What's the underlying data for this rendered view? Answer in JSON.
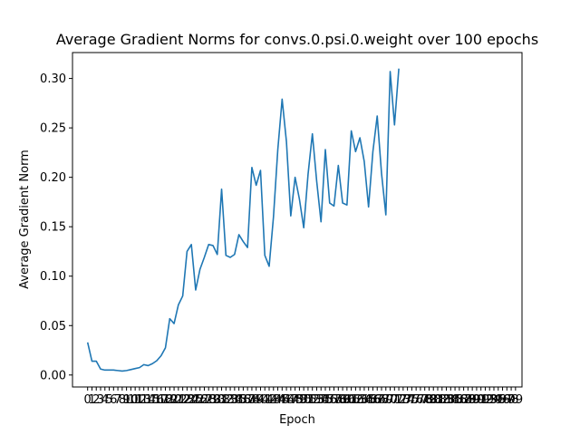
{
  "chart_data": {
    "type": "line",
    "title": "Average Gradient Norms for convs.0.psi.0.weight over 100 epochs",
    "xlabel": "Epoch",
    "ylabel": "Average Gradient Norm",
    "xlim": [
      -3.5,
      100.5
    ],
    "ylim": [
      -0.0121,
      0.3262
    ],
    "x_ticks": [
      0,
      1,
      2,
      3,
      4,
      5,
      6,
      7,
      8,
      9,
      10,
      11,
      12,
      13,
      14,
      15,
      16,
      17,
      18,
      19,
      20,
      21,
      22,
      23,
      24,
      25,
      26,
      27,
      28,
      29,
      30,
      31,
      32,
      33,
      34,
      35,
      36,
      37,
      38,
      39,
      40,
      41,
      42,
      43,
      44,
      45,
      46,
      47,
      48,
      49,
      50,
      51,
      52,
      53,
      54,
      55,
      56,
      57,
      58,
      59,
      60,
      61,
      62,
      63,
      64,
      65,
      66,
      67,
      68,
      69,
      70,
      71,
      72,
      73,
      74,
      75,
      76,
      77,
      78,
      79,
      80,
      81,
      82,
      83,
      84,
      85,
      86,
      87,
      88,
      89,
      90,
      91,
      92,
      93,
      94,
      95,
      96,
      97,
      98,
      99
    ],
    "y_ticks": [
      0.0,
      0.05,
      0.1,
      0.15,
      0.2,
      0.25,
      0.3
    ],
    "y_tick_labels": [
      "0.00",
      "0.05",
      "0.10",
      "0.15",
      "0.20",
      "0.25",
      "0.30"
    ],
    "grid": false,
    "color": "#1f77b4",
    "series": [
      {
        "x": [
          0,
          1,
          2,
          3,
          4,
          5,
          6,
          7,
          8,
          9,
          10,
          11,
          12,
          13,
          14,
          15,
          16,
          17,
          18,
          19,
          20,
          21,
          22,
          23,
          24,
          25,
          26,
          27,
          28,
          29,
          30,
          31,
          32,
          33,
          34,
          35,
          36,
          37,
          38,
          39,
          40,
          41,
          42,
          43,
          44,
          45,
          46,
          47,
          48,
          49,
          50,
          51,
          52,
          53,
          54,
          55,
          56,
          57,
          58,
          59,
          60,
          61,
          62,
          63,
          64,
          65,
          66,
          67,
          68,
          69,
          70,
          71
        ],
        "values": [
          0.033,
          0.014,
          0.014,
          0.006,
          0.005,
          0.005,
          0.005,
          0.0045,
          0.004,
          0.0045,
          0.0055,
          0.0065,
          0.0075,
          0.0105,
          0.0095,
          0.0115,
          0.0145,
          0.0195,
          0.0275,
          0.057,
          0.052,
          0.071,
          0.08,
          0.125,
          0.132,
          0.086,
          0.107,
          0.119,
          0.132,
          0.131,
          0.122,
          0.188,
          0.121,
          0.119,
          0.122,
          0.142,
          0.135,
          0.129,
          0.21,
          0.192,
          0.207,
          0.121,
          0.11,
          0.16,
          0.228,
          0.279,
          0.236,
          0.161,
          0.2,
          0.178,
          0.149,
          0.203,
          0.244,
          0.196,
          0.155,
          0.228,
          0.174,
          0.171,
          0.212,
          0.174,
          0.172,
          0.247,
          0.226,
          0.24,
          0.216,
          0.17,
          0.226,
          0.262,
          0.204,
          0.162,
          0.307,
          0.253
        ]
      }
    ],
    "last_point": {
      "x": 72,
      "y": 0.31
    }
  }
}
